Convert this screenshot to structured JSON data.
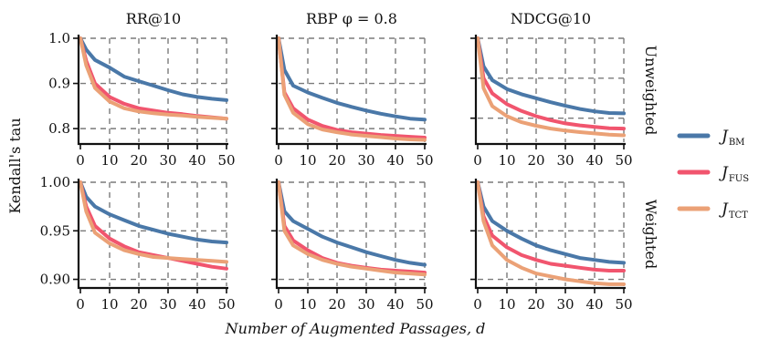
{
  "figure": {
    "ylabel": "Kendall's tau",
    "xlabel": "Number of Augmented Passages, d",
    "columns": [
      "RR@10",
      "RBP φ = 0.8",
      "NDCG@10"
    ],
    "rows": [
      "Unweighted",
      "Weighted"
    ],
    "legend": [
      {
        "label": "J",
        "sub": "BM",
        "color": "#4a78a8"
      },
      {
        "label": "J",
        "sub": "FUS",
        "color": "#f1556e"
      },
      {
        "label": "J",
        "sub": "TCT",
        "color": "#eba176"
      }
    ]
  },
  "chart_data": [
    {
      "type": "line",
      "title": "RR@10",
      "row_label": "Unweighted",
      "xlim": [
        0,
        50
      ],
      "ylim": [
        0.77,
        1.0
      ],
      "xticks": [
        "0",
        "10",
        "20",
        "30",
        "40",
        "50"
      ],
      "yticks": [
        "0.8",
        "0.9",
        "1.0"
      ],
      "ytick_values": [
        0.8,
        0.9,
        1.0
      ],
      "grid": true,
      "xlabel": "",
      "ylabel": "",
      "x": [
        0,
        2,
        5,
        10,
        15,
        20,
        25,
        30,
        35,
        40,
        45,
        50
      ],
      "series": [
        {
          "name": "J_BM",
          "values": [
            1.0,
            0.975,
            0.952,
            0.935,
            0.915,
            0.905,
            0.895,
            0.885,
            0.876,
            0.87,
            0.866,
            0.863
          ]
        },
        {
          "name": "J_FUS",
          "values": [
            1.0,
            0.95,
            0.9,
            0.87,
            0.855,
            0.845,
            0.84,
            0.835,
            0.832,
            0.828,
            0.825,
            0.822
          ]
        },
        {
          "name": "J_TCT",
          "values": [
            1.0,
            0.94,
            0.89,
            0.86,
            0.845,
            0.838,
            0.834,
            0.831,
            0.829,
            0.826,
            0.824,
            0.822
          ]
        }
      ]
    },
    {
      "type": "line",
      "title": "RBP φ = 0.8",
      "row_label": "Unweighted",
      "xlim": [
        0,
        50
      ],
      "ylim": [
        0.77,
        1.0
      ],
      "xticks": [
        "0",
        "10",
        "20",
        "30",
        "40",
        "50"
      ],
      "yticks": [],
      "ytick_values": [
        0.8,
        0.9,
        1.0
      ],
      "grid": true,
      "xlabel": "",
      "ylabel": "",
      "x": [
        0,
        2,
        5,
        10,
        15,
        20,
        25,
        30,
        35,
        40,
        45,
        50
      ],
      "series": [
        {
          "name": "J_BM",
          "values": [
            1.0,
            0.93,
            0.895,
            0.88,
            0.868,
            0.857,
            0.848,
            0.84,
            0.833,
            0.827,
            0.822,
            0.82
          ]
        },
        {
          "name": "J_FUS",
          "values": [
            1.0,
            0.88,
            0.845,
            0.82,
            0.806,
            0.797,
            0.792,
            0.789,
            0.786,
            0.784,
            0.782,
            0.78
          ]
        },
        {
          "name": "J_TCT",
          "values": [
            1.0,
            0.875,
            0.835,
            0.81,
            0.798,
            0.792,
            0.787,
            0.784,
            0.781,
            0.778,
            0.776,
            0.775
          ]
        }
      ]
    },
    {
      "type": "line",
      "title": "NDCG@10",
      "row_label": "Unweighted",
      "xlim": [
        0,
        50
      ],
      "ylim": [
        0.74,
        1.0
      ],
      "xticks": [
        "0",
        "10",
        "20",
        "30",
        "40",
        "50"
      ],
      "yticks": [],
      "ytick_values": [
        0.8,
        0.9,
        1.0
      ],
      "grid": true,
      "xlabel": "",
      "ylabel": "",
      "x": [
        0,
        2,
        5,
        10,
        15,
        20,
        25,
        30,
        35,
        40,
        45,
        50
      ],
      "series": [
        {
          "name": "J_BM",
          "values": [
            1.0,
            0.93,
            0.895,
            0.873,
            0.86,
            0.85,
            0.84,
            0.831,
            0.823,
            0.817,
            0.813,
            0.812
          ]
        },
        {
          "name": "J_FUS",
          "values": [
            1.0,
            0.9,
            0.862,
            0.835,
            0.818,
            0.805,
            0.795,
            0.787,
            0.782,
            0.778,
            0.775,
            0.774
          ]
        },
        {
          "name": "J_TCT",
          "values": [
            1.0,
            0.875,
            0.83,
            0.805,
            0.79,
            0.781,
            0.774,
            0.769,
            0.765,
            0.762,
            0.759,
            0.757
          ]
        }
      ]
    },
    {
      "type": "line",
      "title": "",
      "row_label": "Weighted",
      "xlim": [
        0,
        50
      ],
      "ylim": [
        0.893,
        1.0
      ],
      "xticks": [
        "0",
        "10",
        "20",
        "30",
        "40",
        "50"
      ],
      "yticks": [
        "0.90",
        "0.95",
        "1.00"
      ],
      "ytick_values": [
        0.9,
        0.95,
        1.0
      ],
      "grid": true,
      "xlabel": "",
      "ylabel": "",
      "x": [
        0,
        2,
        5,
        10,
        15,
        20,
        25,
        30,
        35,
        40,
        45,
        50
      ],
      "series": [
        {
          "name": "J_BM",
          "values": [
            1.0,
            0.985,
            0.975,
            0.967,
            0.961,
            0.955,
            0.951,
            0.947,
            0.944,
            0.941,
            0.939,
            0.938
          ]
        },
        {
          "name": "J_FUS",
          "values": [
            1.0,
            0.975,
            0.955,
            0.942,
            0.934,
            0.928,
            0.925,
            0.922,
            0.919,
            0.916,
            0.913,
            0.911
          ]
        },
        {
          "name": "J_TCT",
          "values": [
            1.0,
            0.97,
            0.948,
            0.937,
            0.93,
            0.926,
            0.923,
            0.922,
            0.921,
            0.92,
            0.919,
            0.918
          ]
        }
      ]
    },
    {
      "type": "line",
      "title": "",
      "row_label": "Weighted",
      "xlim": [
        0,
        50
      ],
      "ylim": [
        0.893,
        1.0
      ],
      "xticks": [
        "0",
        "10",
        "20",
        "30",
        "40",
        "50"
      ],
      "yticks": [],
      "ytick_values": [
        0.9,
        0.95,
        1.0
      ],
      "grid": true,
      "xlabel": "",
      "ylabel": "",
      "x": [
        0,
        2,
        5,
        10,
        15,
        20,
        25,
        30,
        35,
        40,
        45,
        50
      ],
      "series": [
        {
          "name": "J_BM",
          "values": [
            1.0,
            0.97,
            0.96,
            0.952,
            0.944,
            0.938,
            0.933,
            0.928,
            0.924,
            0.92,
            0.917,
            0.915
          ]
        },
        {
          "name": "J_FUS",
          "values": [
            1.0,
            0.955,
            0.94,
            0.93,
            0.922,
            0.917,
            0.914,
            0.912,
            0.91,
            0.909,
            0.908,
            0.907
          ]
        },
        {
          "name": "J_TCT",
          "values": [
            1.0,
            0.95,
            0.935,
            0.926,
            0.92,
            0.916,
            0.913,
            0.911,
            0.909,
            0.907,
            0.906,
            0.905
          ]
        }
      ]
    },
    {
      "type": "line",
      "title": "",
      "row_label": "Weighted",
      "xlim": [
        0,
        50
      ],
      "ylim": [
        0.893,
        1.0
      ],
      "xticks": [
        "0",
        "10",
        "20",
        "30",
        "40",
        "50"
      ],
      "yticks": [],
      "ytick_values": [
        0.9,
        0.95,
        1.0
      ],
      "grid": true,
      "xlabel": "",
      "ylabel": "",
      "x": [
        0,
        2,
        5,
        10,
        15,
        20,
        25,
        30,
        35,
        40,
        45,
        50
      ],
      "series": [
        {
          "name": "J_BM",
          "values": [
            1.0,
            0.975,
            0.96,
            0.95,
            0.942,
            0.935,
            0.93,
            0.926,
            0.922,
            0.92,
            0.918,
            0.917
          ]
        },
        {
          "name": "J_FUS",
          "values": [
            1.0,
            0.965,
            0.945,
            0.933,
            0.925,
            0.92,
            0.916,
            0.914,
            0.912,
            0.91,
            0.909,
            0.909
          ]
        },
        {
          "name": "J_TCT",
          "values": [
            1.0,
            0.96,
            0.935,
            0.92,
            0.912,
            0.906,
            0.903,
            0.9,
            0.898,
            0.896,
            0.895,
            0.895
          ]
        }
      ]
    }
  ]
}
